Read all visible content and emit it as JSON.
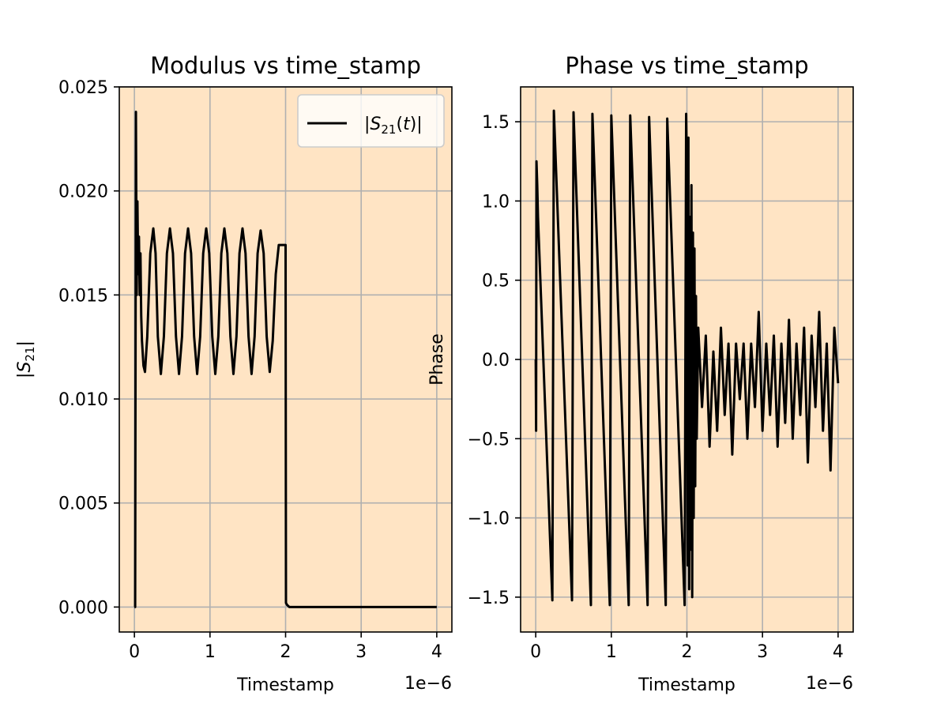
{
  "colors": {
    "plot_bg": "#ffe4c4",
    "line": "#000000",
    "grid": "#b0b0b0",
    "figure_bg": "#ffffff"
  },
  "chart_data": [
    {
      "type": "line",
      "title": "Modulus vs time_stamp",
      "xlabel": "Timestamp",
      "ylabel": "|S21|",
      "x_offset_text": "1e−6",
      "xlim": [
        -0.2,
        4.2
      ],
      "ylim": [
        -0.0012,
        0.025
      ],
      "grid": true,
      "legend": {
        "position": "top-right",
        "entries": [
          "|S21(t)|"
        ]
      },
      "xticks": [
        0,
        1,
        2,
        3,
        4
      ],
      "xtick_labels": [
        "0",
        "1",
        "2",
        "3",
        "4"
      ],
      "yticks": [
        0.0,
        0.005,
        0.01,
        0.015,
        0.02,
        0.025
      ],
      "ytick_labels": [
        "0.000",
        "0.005",
        "0.010",
        "0.015",
        "0.020",
        "0.025"
      ],
      "series": [
        {
          "name": "|S21(t)|",
          "x": [
            0.0,
            0.01,
            0.02,
            0.03,
            0.04,
            0.05,
            0.06,
            0.07,
            0.08,
            0.09,
            0.1,
            0.12,
            0.14,
            0.17,
            0.21,
            0.25,
            0.28,
            0.31,
            0.35,
            0.39,
            0.43,
            0.47,
            0.51,
            0.55,
            0.59,
            0.63,
            0.67,
            0.71,
            0.75,
            0.79,
            0.83,
            0.87,
            0.91,
            0.95,
            0.99,
            1.03,
            1.07,
            1.11,
            1.15,
            1.19,
            1.23,
            1.27,
            1.31,
            1.35,
            1.39,
            1.43,
            1.47,
            1.51,
            1.55,
            1.59,
            1.63,
            1.67,
            1.71,
            1.75,
            1.79,
            1.83,
            1.87,
            1.91,
            1.95,
            1.99,
            2.0,
            2.005,
            2.02,
            2.05,
            2.5,
            3.0,
            3.5,
            4.0
          ],
          "y": [
            0.0,
            0.0,
            0.0238,
            0.015,
            0.0195,
            0.016,
            0.0178,
            0.015,
            0.017,
            0.014,
            0.0128,
            0.0116,
            0.0113,
            0.013,
            0.017,
            0.0182,
            0.017,
            0.013,
            0.0112,
            0.013,
            0.017,
            0.0182,
            0.017,
            0.013,
            0.0112,
            0.013,
            0.017,
            0.0182,
            0.017,
            0.013,
            0.0112,
            0.013,
            0.017,
            0.0182,
            0.017,
            0.013,
            0.0112,
            0.013,
            0.017,
            0.0182,
            0.017,
            0.013,
            0.0112,
            0.013,
            0.017,
            0.0182,
            0.017,
            0.013,
            0.0112,
            0.013,
            0.017,
            0.0181,
            0.017,
            0.013,
            0.0113,
            0.0128,
            0.016,
            0.0174,
            0.0174,
            0.0174,
            0.0174,
            0.0002,
            0.0001,
            0.0,
            0.0,
            0.0,
            0.0,
            0.0
          ]
        }
      ]
    },
    {
      "type": "line",
      "title": "Phase vs time_stamp",
      "xlabel": "Timestamp",
      "ylabel": "Phase",
      "x_offset_text": "1e−6",
      "xlim": [
        -0.2,
        4.2
      ],
      "ylim": [
        -1.72,
        1.72
      ],
      "grid": true,
      "xticks": [
        0,
        1,
        2,
        3,
        4
      ],
      "xtick_labels": [
        "0",
        "1",
        "2",
        "3",
        "4"
      ],
      "yticks": [
        -1.5,
        -1.0,
        -0.5,
        0.0,
        0.5,
        1.0,
        1.5
      ],
      "ytick_labels": [
        "−1.5",
        "−1.0",
        "−0.5",
        "0.0",
        "0.5",
        "1.0",
        "1.5"
      ],
      "series": [
        {
          "x": [
            0.0,
            0.005,
            0.01,
            0.02,
            0.03,
            0.22,
            0.24,
            0.48,
            0.5,
            0.73,
            0.75,
            0.98,
            1.0,
            1.23,
            1.25,
            1.48,
            1.5,
            1.72,
            1.74,
            1.97,
            1.99,
            2.0,
            2.01,
            2.02,
            2.03,
            2.04,
            2.05,
            2.06,
            2.07,
            2.08,
            2.09,
            2.1,
            2.11,
            2.12,
            2.13,
            2.15,
            2.2,
            2.25,
            2.3,
            2.35,
            2.4,
            2.45,
            2.5,
            2.55,
            2.6,
            2.65,
            2.7,
            2.75,
            2.8,
            2.85,
            2.9,
            2.95,
            3.0,
            3.05,
            3.1,
            3.15,
            3.2,
            3.25,
            3.3,
            3.35,
            3.4,
            3.45,
            3.5,
            3.55,
            3.6,
            3.65,
            3.7,
            3.75,
            3.8,
            3.85,
            3.9,
            3.95,
            4.0
          ],
          "y": [
            0.0,
            -0.45,
            1.25,
            1.1,
            0.9,
            -1.52,
            1.57,
            -1.52,
            1.56,
            -1.55,
            1.55,
            -1.55,
            1.54,
            -1.55,
            1.54,
            -1.55,
            1.53,
            -1.55,
            1.52,
            -1.55,
            1.55,
            1.2,
            -1.3,
            1.4,
            -1.45,
            0.9,
            -1.2,
            1.1,
            -1.5,
            0.8,
            -1.0,
            0.7,
            -0.8,
            0.4,
            -0.5,
            0.2,
            -0.3,
            0.15,
            -0.55,
            0.05,
            -0.45,
            0.2,
            -0.35,
            0.1,
            -0.6,
            0.1,
            -0.25,
            0.1,
            -0.5,
            0.1,
            -0.3,
            0.3,
            -0.45,
            0.1,
            -0.35,
            0.15,
            -0.55,
            0.1,
            -0.4,
            0.25,
            -0.5,
            0.1,
            -0.35,
            0.2,
            -0.65,
            0.15,
            -0.3,
            0.3,
            -0.45,
            0.1,
            -0.7,
            0.2,
            -0.15
          ]
        }
      ]
    }
  ]
}
